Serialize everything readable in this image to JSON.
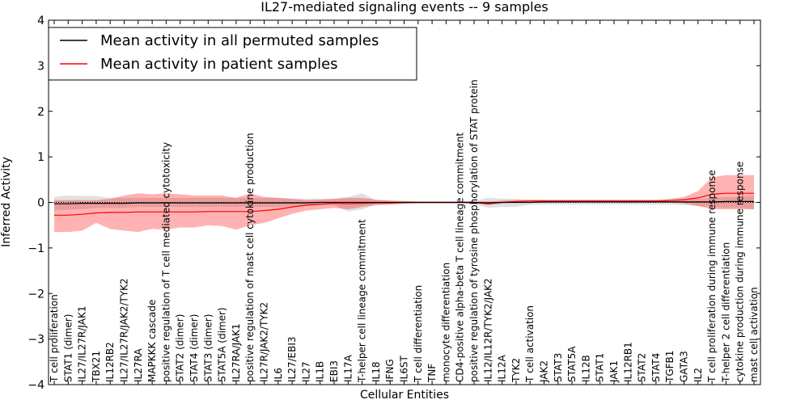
{
  "chart_data": {
    "type": "line",
    "title": "IL27-mediated signaling events -- 9 samples",
    "xlabel": "Cellular Entities",
    "ylabel": "Inferred Activity",
    "ylim": [
      -4,
      4
    ],
    "yticks": [
      "4",
      "3",
      "2",
      "1",
      "0",
      "−1",
      "−2",
      "−3",
      "−4"
    ],
    "legend_position": "top-left",
    "categories": [
      "T cell proliferation",
      "STAT1 (dimer)",
      "IL27/IL27R/JAK1",
      "TBX21",
      "IL12RB2",
      "IL27/IL27R/JAK2/TYK2",
      "IL27RA",
      "MAPKKK cascade",
      "positive regulation of T cell mediated cytotoxicity",
      "STAT2 (dimer)",
      "STAT4 (dimer)",
      "STAT3 (dimer)",
      "STAT5A (dimer)",
      "IL27RA/JAK1",
      "positive regulation of mast cell cytokine production",
      "IL27R/JAK2/TYK2",
      "IL6",
      "IL27/EBI3",
      "IL27",
      "IL1B",
      "EBI3",
      "IL17A",
      "T-helper cell lineage commitment",
      "IL18",
      "IFNG",
      "IL6ST",
      "T cell differentiation",
      "TNF",
      "monocyte differentiation",
      "CD4-positive alpha-beta T cell lineage commitment",
      "positive regulation of tyrosine phosphorylation of STAT protein",
      "IL12/IL12R/TYK2/JAK2",
      "IL12A",
      "TYK2",
      "T cell activation",
      "JAK2",
      "STAT3",
      "STAT5A",
      "IL12B",
      "STAT1",
      "JAK1",
      "IL12RB1",
      "STAT2",
      "STAT4",
      "TGFB1",
      "GATA3",
      "IL2",
      "T cell proliferation during immune response",
      "T-helper 2 cell differentiation",
      "cytokine production during immune response",
      "mast cell activation"
    ],
    "series": [
      {
        "name": "Mean activity in all permuted samples",
        "color": "#000000",
        "values": [
          -0.03,
          -0.03,
          -0.02,
          -0.02,
          -0.02,
          -0.02,
          -0.01,
          -0.01,
          -0.01,
          -0.01,
          -0.01,
          -0.01,
          -0.01,
          -0.01,
          -0.01,
          -0.01,
          -0.01,
          -0.01,
          -0.01,
          0.0,
          0.0,
          0.0,
          0.0,
          0.0,
          0.0,
          0.0,
          0.0,
          0.0,
          0.0,
          0.0,
          0.0,
          -0.01,
          0.0,
          0.0,
          0.0,
          0.01,
          0.01,
          0.01,
          0.01,
          0.01,
          0.01,
          0.01,
          0.01,
          0.01,
          0.01,
          0.01,
          0.01,
          0.01,
          0.02,
          0.02,
          0.02
        ],
        "band_low": [
          -0.18,
          -0.16,
          -0.15,
          -0.12,
          -0.12,
          -0.12,
          -0.1,
          -0.1,
          -0.1,
          -0.1,
          -0.1,
          -0.1,
          -0.1,
          -0.1,
          -0.1,
          -0.1,
          -0.1,
          -0.08,
          -0.08,
          -0.06,
          -0.06,
          -0.2,
          -0.15,
          -0.05,
          -0.04,
          -0.03,
          -0.02,
          -0.02,
          -0.02,
          -0.02,
          -0.03,
          -0.12,
          -0.1,
          -0.1,
          -0.05,
          -0.05,
          -0.05,
          -0.05,
          -0.05,
          -0.05,
          -0.05,
          -0.05,
          -0.05,
          -0.05,
          -0.05,
          -0.06,
          -0.08,
          -0.1,
          -0.12,
          -0.12,
          -0.15
        ],
        "band_high": [
          0.12,
          0.15,
          0.14,
          0.14,
          0.1,
          0.1,
          0.1,
          0.1,
          0.1,
          0.1,
          0.1,
          0.1,
          0.1,
          0.1,
          0.1,
          0.1,
          0.1,
          0.08,
          0.08,
          0.08,
          0.08,
          0.12,
          0.2,
          0.05,
          0.04,
          0.03,
          0.02,
          0.02,
          0.02,
          0.02,
          0.03,
          0.1,
          0.08,
          0.08,
          0.05,
          0.05,
          0.05,
          0.05,
          0.05,
          0.05,
          0.05,
          0.05,
          0.05,
          0.05,
          0.05,
          0.06,
          0.08,
          0.1,
          0.12,
          0.12,
          0.15
        ]
      },
      {
        "name": "Mean activity in patient samples",
        "color": "#ff0000",
        "values": [
          -0.28,
          -0.28,
          -0.26,
          -0.23,
          -0.22,
          -0.22,
          -0.21,
          -0.21,
          -0.21,
          -0.21,
          -0.21,
          -0.2,
          -0.2,
          -0.2,
          -0.2,
          -0.18,
          -0.15,
          -0.1,
          -0.06,
          -0.04,
          -0.02,
          -0.03,
          -0.02,
          -0.01,
          -0.01,
          0.0,
          0.0,
          0.0,
          0.0,
          0.0,
          0.0,
          -0.03,
          0.0,
          0.02,
          0.03,
          0.03,
          0.03,
          0.03,
          0.03,
          0.03,
          0.03,
          0.03,
          0.03,
          0.03,
          0.04,
          0.06,
          0.1,
          0.18,
          0.2,
          0.2,
          0.2
        ],
        "band_low": [
          -0.65,
          -0.65,
          -0.62,
          -0.45,
          -0.58,
          -0.62,
          -0.65,
          -0.58,
          -0.6,
          -0.55,
          -0.55,
          -0.5,
          -0.52,
          -0.6,
          -0.5,
          -0.45,
          -0.35,
          -0.25,
          -0.18,
          -0.15,
          -0.12,
          -0.15,
          -0.1,
          -0.06,
          -0.05,
          -0.03,
          -0.02,
          -0.02,
          -0.02,
          -0.02,
          -0.02,
          -0.06,
          -0.02,
          0.0,
          0.01,
          0.01,
          0.01,
          0.01,
          0.01,
          0.01,
          0.01,
          0.01,
          0.01,
          0.01,
          0.0,
          -0.02,
          -0.08,
          -0.15,
          -0.15,
          -0.15,
          -0.15
        ],
        "band_high": [
          0.05,
          0.05,
          0.05,
          0.05,
          0.08,
          0.15,
          0.2,
          0.18,
          0.2,
          0.18,
          0.15,
          0.15,
          0.15,
          0.1,
          0.2,
          0.12,
          0.1,
          0.08,
          0.05,
          0.06,
          0.08,
          0.1,
          0.1,
          0.06,
          0.04,
          0.03,
          0.02,
          0.02,
          0.02,
          0.02,
          0.02,
          0.02,
          0.04,
          0.05,
          0.06,
          0.06,
          0.06,
          0.06,
          0.06,
          0.06,
          0.06,
          0.06,
          0.06,
          0.06,
          0.08,
          0.12,
          0.25,
          0.55,
          0.6,
          0.6,
          0.6
        ]
      }
    ]
  }
}
